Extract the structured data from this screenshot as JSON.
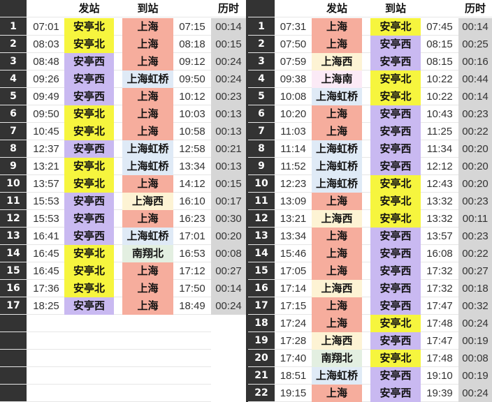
{
  "headers": {
    "from": "发站",
    "to": "到站",
    "duration": "历时"
  },
  "station_colors": {
    "安亭北": "#f6f53e",
    "安亭西": "#c9b9f1",
    "上海": "#f6ad9d",
    "上海虹桥": "#dfeaf6",
    "上海西": "#fdf3d4",
    "上海南": "#fbeaf6",
    "南翔北": "#e3efe1"
  },
  "duration_bg": "#d6d6d6",
  "left_table": [
    [
      "1",
      "07:01",
      "安亭北",
      "上海",
      "07:15",
      "00:14"
    ],
    [
      "2",
      "08:03",
      "安亭北",
      "上海",
      "08:18",
      "00:15"
    ],
    [
      "3",
      "08:48",
      "安亭西",
      "上海",
      "09:12",
      "00:24"
    ],
    [
      "4",
      "09:26",
      "安亭西",
      "上海虹桥",
      "09:50",
      "00:24"
    ],
    [
      "5",
      "09:49",
      "安亭西",
      "上海",
      "10:12",
      "00:23"
    ],
    [
      "6",
      "09:50",
      "安亭北",
      "上海",
      "10:03",
      "00:13"
    ],
    [
      "7",
      "10:45",
      "安亭北",
      "上海",
      "10:58",
      "00:13"
    ],
    [
      "8",
      "12:37",
      "安亭西",
      "上海虹桥",
      "12:58",
      "00:21"
    ],
    [
      "9",
      "13:21",
      "安亭北",
      "上海虹桥",
      "13:34",
      "00:13"
    ],
    [
      "10",
      "13:57",
      "安亭北",
      "上海",
      "14:12",
      "00:15"
    ],
    [
      "11",
      "15:53",
      "安亭西",
      "上海西",
      "16:10",
      "00:17"
    ],
    [
      "12",
      "15:53",
      "安亭西",
      "上海",
      "16:23",
      "00:30"
    ],
    [
      "13",
      "16:41",
      "安亭西",
      "上海虹桥",
      "17:01",
      "00:20"
    ],
    [
      "14",
      "16:45",
      "安亭北",
      "南翔北",
      "16:53",
      "00:08"
    ],
    [
      "15",
      "16:45",
      "安亭北",
      "上海",
      "17:12",
      "00:27"
    ],
    [
      "16",
      "17:36",
      "安亭北",
      "上海",
      "17:50",
      "00:14"
    ],
    [
      "17",
      "18:25",
      "安亭西",
      "上海",
      "18:49",
      "00:24"
    ]
  ],
  "right_table": [
    [
      "1",
      "07:31",
      "上海",
      "安亭北",
      "07:45",
      "00:14"
    ],
    [
      "2",
      "07:50",
      "上海",
      "安亭西",
      "08:15",
      "00:25"
    ],
    [
      "3",
      "07:59",
      "上海西",
      "安亭西",
      "08:15",
      "00:16"
    ],
    [
      "4",
      "09:38",
      "上海南",
      "安亭北",
      "10:22",
      "00:44"
    ],
    [
      "5",
      "10:08",
      "上海虹桥",
      "安亭北",
      "10:22",
      "00:14"
    ],
    [
      "6",
      "10:20",
      "上海",
      "安亭西",
      "10:43",
      "00:23"
    ],
    [
      "7",
      "11:03",
      "上海",
      "安亭西",
      "11:25",
      "00:22"
    ],
    [
      "8",
      "11:14",
      "上海虹桥",
      "安亭西",
      "11:34",
      "00:20"
    ],
    [
      "9",
      "11:52",
      "上海虹桥",
      "安亭西",
      "12:12",
      "00:20"
    ],
    [
      "10",
      "12:23",
      "上海虹桥",
      "安亭北",
      "12:43",
      "00:20"
    ],
    [
      "11",
      "13:09",
      "上海",
      "安亭北",
      "13:32",
      "00:23"
    ],
    [
      "12",
      "13:21",
      "上海西",
      "安亭北",
      "13:32",
      "00:11"
    ],
    [
      "13",
      "13:34",
      "上海",
      "安亭西",
      "13:57",
      "00:23"
    ],
    [
      "14",
      "15:46",
      "上海",
      "安亭西",
      "16:08",
      "00:22"
    ],
    [
      "15",
      "17:05",
      "上海",
      "安亭西",
      "17:32",
      "00:27"
    ],
    [
      "16",
      "17:14",
      "上海西",
      "安亭西",
      "17:32",
      "00:18"
    ],
    [
      "17",
      "17:15",
      "上海",
      "安亭西",
      "17:47",
      "00:32"
    ],
    [
      "18",
      "17:24",
      "上海",
      "安亭北",
      "17:48",
      "00:24"
    ],
    [
      "19",
      "17:28",
      "上海西",
      "安亭西",
      "17:47",
      "00:19"
    ],
    [
      "20",
      "17:40",
      "南翔北",
      "安亭北",
      "17:48",
      "00:08"
    ],
    [
      "21",
      "18:51",
      "上海虹桥",
      "安亭西",
      "19:10",
      "00:19"
    ],
    [
      "22",
      "19:15",
      "上海",
      "安亭西",
      "19:39",
      "00:24"
    ]
  ]
}
